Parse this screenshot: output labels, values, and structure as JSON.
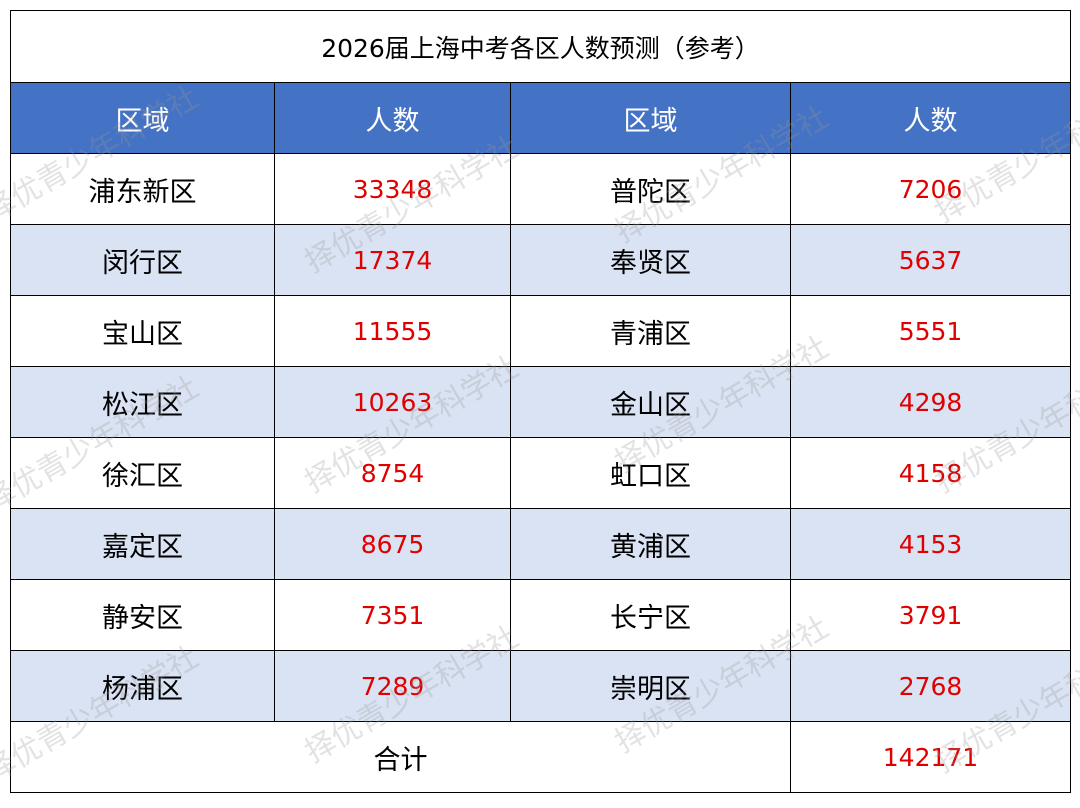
{
  "table": {
    "title": "2026届上海中考各区人数预测（参考）",
    "header": [
      "区域",
      "人数",
      "区域",
      "人数"
    ],
    "rows": [
      [
        "浦东新区",
        33348,
        "普陀区",
        7206
      ],
      [
        "闵行区",
        17374,
        "奉贤区",
        5637
      ],
      [
        "宝山区",
        11555,
        "青浦区",
        5551
      ],
      [
        "松江区",
        10263,
        "金山区",
        4298
      ],
      [
        "徐汇区",
        8754,
        "虹口区",
        4158
      ],
      [
        "嘉定区",
        8675,
        "黄浦区",
        4153
      ],
      [
        "静安区",
        7351,
        "长宁区",
        3791
      ],
      [
        "杨浦区",
        7289,
        "崇明区",
        2768
      ]
    ],
    "total": {
      "label": "合计",
      "value": 142171
    }
  },
  "watermark": "择优青少年科学社"
}
